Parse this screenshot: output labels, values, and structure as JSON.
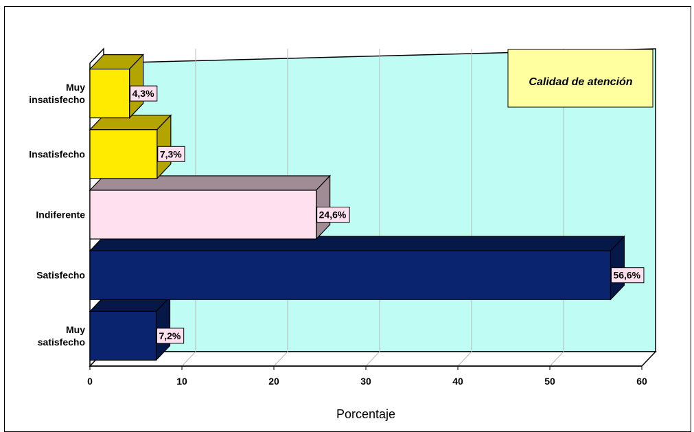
{
  "chart_data": {
    "type": "bar",
    "orientation": "horizontal",
    "three_d": true,
    "categories": [
      "Muy insatisfecho",
      "Insatisfecho",
      "Indiferente",
      "Satisfecho",
      "Muy satisfecho"
    ],
    "category_lines": [
      [
        "Muy",
        "insatisfecho"
      ],
      [
        "Insatisfecho"
      ],
      [
        "Indiferente"
      ],
      [
        "Satisfecho"
      ],
      [
        "Muy",
        "satisfecho"
      ]
    ],
    "values": [
      4.3,
      7.3,
      24.6,
      56.6,
      7.2
    ],
    "data_labels": [
      "4,3%",
      "7,3%",
      "24,6%",
      "56,6%",
      "7,2%"
    ],
    "bar_colors": [
      "#FFEB00",
      "#FFEB00",
      "#FFE0EE",
      "#0A2470",
      "#0A2470"
    ],
    "bar_top_colors": [
      "#B3A400",
      "#B3A400",
      "#A08C95",
      "#061848",
      "#061848"
    ],
    "x_ticks": [
      "0",
      "10",
      "20",
      "30",
      "40",
      "50",
      "60"
    ],
    "xlim": [
      0,
      60
    ],
    "xlabel": "Porcentaje",
    "ylabel": "",
    "legend_text": "Calidad de atención",
    "legend_placement": "top-right",
    "grid": true,
    "colors": {
      "plot_background": "#BFFDF4",
      "floor": "#FFFFFF",
      "gridline": "#B8B8B8",
      "legend_background": "#FFFFA0",
      "data_label_background": "#FFE0EE"
    }
  }
}
